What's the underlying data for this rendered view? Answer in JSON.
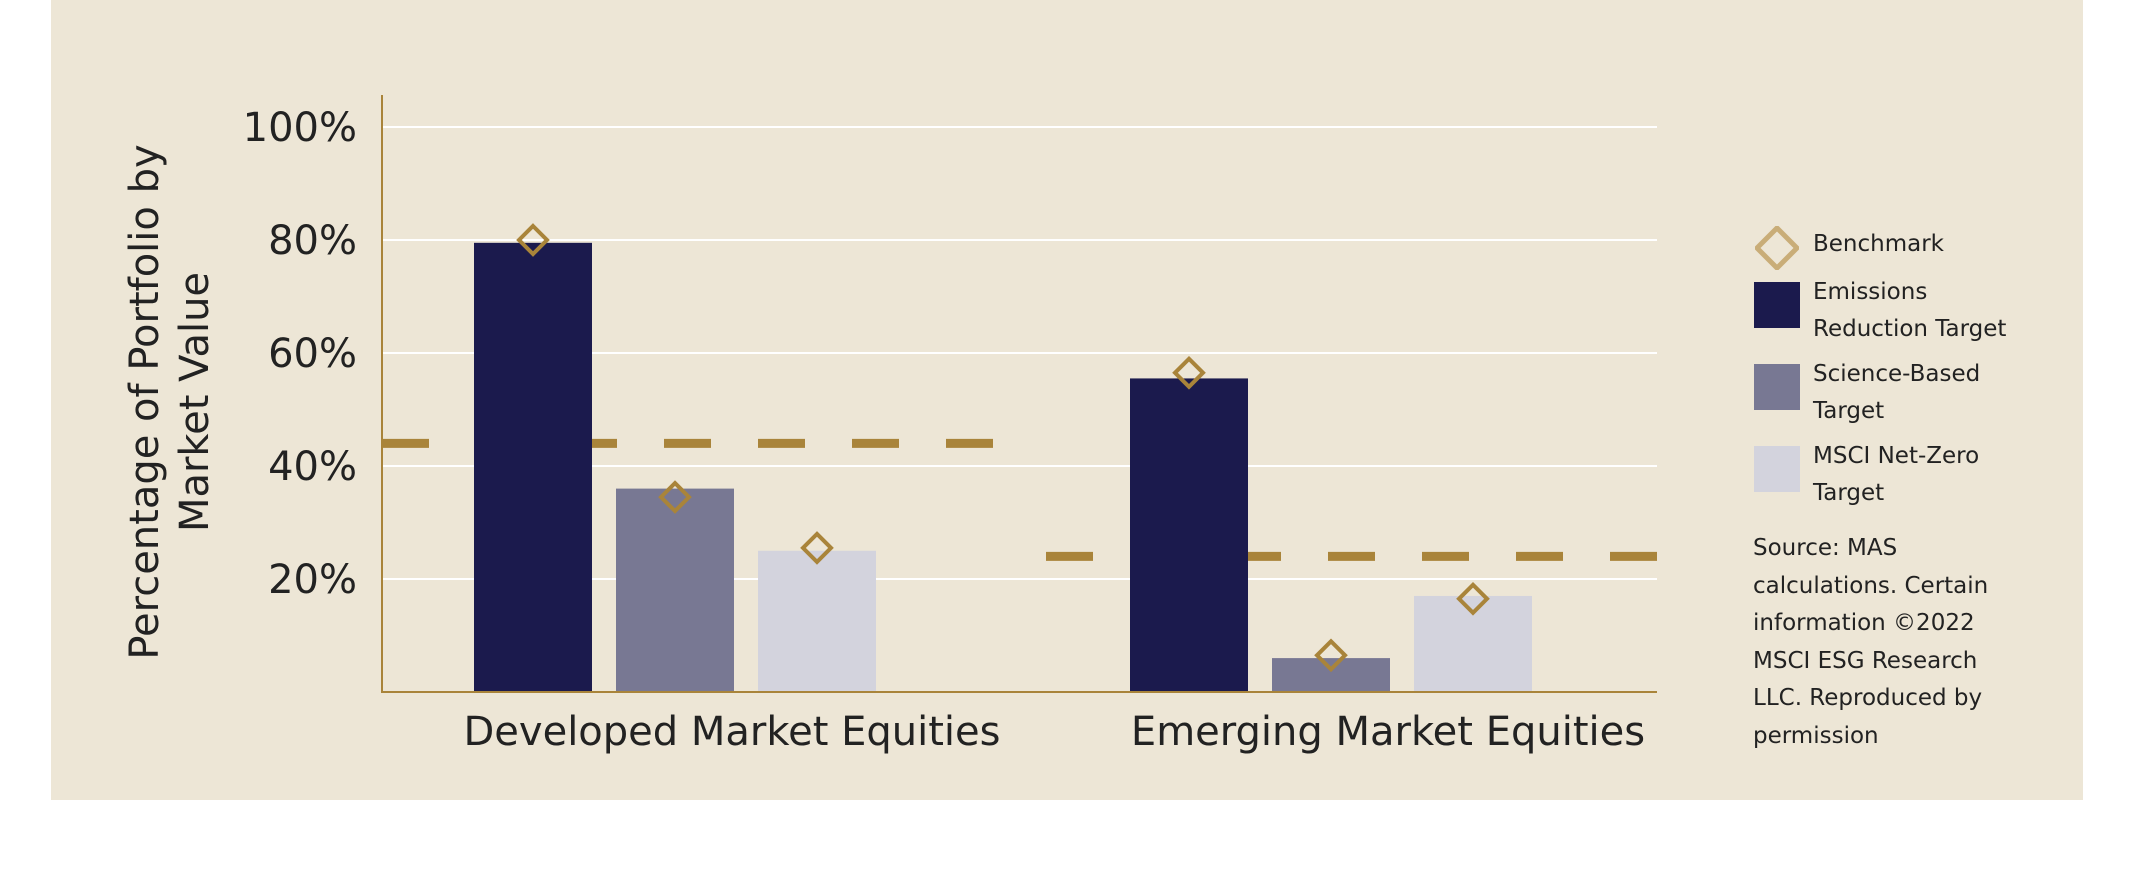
{
  "chart_data": {
    "type": "bar",
    "categories": [
      "Developed Market Equities",
      "Emerging Market Equities"
    ],
    "series": [
      {
        "name": "Emissions Reduction Target",
        "color": "#1B1A4D",
        "values": [
          79.5,
          55.5
        ]
      },
      {
        "name": "Science-Based Target",
        "color": "#787893",
        "values": [
          36,
          6
        ]
      },
      {
        "name": "MSCI Net-Zero Target",
        "color": "#D3D3DD",
        "values": [
          25,
          17
        ]
      }
    ],
    "benchmark": {
      "name": "Benchmark",
      "color": "#A9843A",
      "values": [
        [
          80,
          34.5,
          25.5
        ],
        [
          56.5,
          6.5,
          16.5
        ]
      ]
    },
    "reference_lines": [
      {
        "category": "Developed Market Equities",
        "value": 44,
        "style": "dashed",
        "color": "#A9843A"
      },
      {
        "category": "Emerging Market Equities",
        "value": 24,
        "style": "dashed",
        "color": "#A9843A"
      }
    ],
    "title": "",
    "xlabel": "",
    "ylabel": "Percentage of Portfolio by Market Value",
    "ylabel_lines": [
      "Percentage of Portfolio by",
      "Market Value"
    ],
    "yticks": [
      20,
      40,
      60,
      80,
      100
    ],
    "ytick_labels": [
      "20%",
      "40%",
      "60%",
      "80%",
      "100%"
    ],
    "ylim": [
      0,
      106
    ],
    "grid": true,
    "legend_position": "right"
  },
  "legend": {
    "items": [
      {
        "label_lines": [
          "Benchmark"
        ],
        "kind": "marker",
        "color": "#C9AD78"
      },
      {
        "label_lines": [
          "Emissions",
          "Reduction Target"
        ],
        "kind": "swatch",
        "color": "#1B1A4D"
      },
      {
        "label_lines": [
          "Science-Based",
          "Target"
        ],
        "kind": "swatch",
        "color": "#787893"
      },
      {
        "label_lines": [
          "MSCI Net-Zero",
          "Target"
        ],
        "kind": "swatch",
        "color": "#D3D3DD"
      }
    ]
  },
  "source_lines": [
    "Source: MAS",
    "calculations. Certain",
    "information ©2022",
    "MSCI ESG Research",
    "LLC. Reproduced by",
    "permission"
  ]
}
